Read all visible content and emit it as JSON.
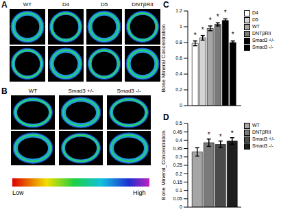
{
  "image_panels": [
    {
      "panel": "A",
      "columns": [
        "WT",
        "D4",
        "D5",
        "DNTβRII"
      ],
      "rows": 2
    },
    {
      "panel": "B",
      "columns": [
        "WT",
        "Smad3 +/-",
        "Smad3 -/-"
      ],
      "rows": 2
    }
  ],
  "color_scale": {
    "low": "Low",
    "high": "High"
  },
  "chart_data": [
    {
      "panel": "C",
      "type": "bar",
      "y_label": "Bone Mineral Concentration",
      "ylim": [
        0,
        1.2
      ],
      "yticks": [
        0,
        0.2,
        0.4,
        0.6,
        0.8,
        1,
        1.2
      ],
      "grid": false,
      "tick_labels": "y",
      "series": [
        {
          "name": "D4",
          "color": "#ffffff",
          "values": [
            0.79
          ],
          "errors": [
            0.03
          ],
          "annotation": "*"
        },
        {
          "name": "D5",
          "color": "#d4d4d4",
          "values": [
            0.86
          ],
          "errors": [
            0.03
          ],
          "annotation": "*"
        },
        {
          "name": "WT",
          "color": "#a6a6a6",
          "values": [
            0.98
          ],
          "errors": [
            0.03
          ],
          "annotation": "*"
        },
        {
          "name": "DNTβRII",
          "color": "#7a7a7a",
          "values": [
            1.03
          ],
          "errors": [
            0.02
          ],
          "annotation": "*"
        },
        {
          "name": "Smad3 +/-",
          "color": "#000000",
          "values": [
            1.08
          ],
          "errors": [
            0.02
          ],
          "annotation": "*"
        },
        {
          "name": "Smad3 -/-",
          "color": "#000000",
          "values": [
            0.8
          ],
          "errors": [
            0.02
          ],
          "annotation": "*"
        }
      ]
    },
    {
      "panel": "D",
      "type": "bar",
      "y_label": "Bone Mineral_Concentration",
      "ylim": [
        0,
        0.5
      ],
      "yticks": [
        0,
        0.05,
        0.1,
        0.15,
        0.2,
        0.25,
        0.3,
        0.35,
        0.4,
        0.45,
        0.5
      ],
      "grid": false,
      "tick_labels": "y",
      "series": [
        {
          "name": "WT",
          "color": "#a6a6a6",
          "values": [
            0.33
          ],
          "errors": [
            0.025
          ],
          "annotation": null
        },
        {
          "name": "DNTβRII",
          "color": "#7a7a7a",
          "values": [
            0.385
          ],
          "errors": [
            0.022
          ],
          "annotation": "*"
        },
        {
          "name": "Smad3 +/-",
          "color": "#4a4a4a",
          "values": [
            0.375
          ],
          "errors": [
            0.02
          ],
          "annotation": "*"
        },
        {
          "name": "Smad3 -/-",
          "color": "#1e1e1e",
          "values": [
            0.395
          ],
          "errors": [
            0.02
          ],
          "annotation": "*"
        }
      ]
    }
  ]
}
